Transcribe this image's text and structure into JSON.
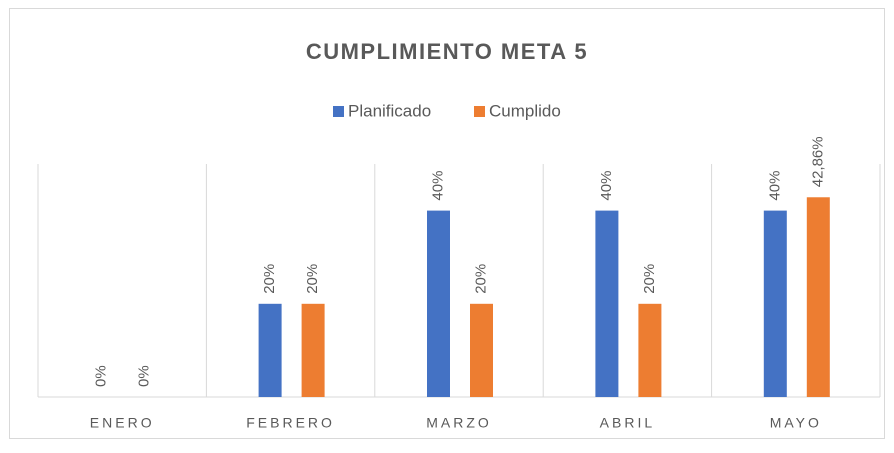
{
  "chart_data": {
    "type": "bar",
    "title": "CUMPLIMIENTO META 5",
    "categories": [
      "ENERO",
      "FEBRERO",
      "MARZO",
      "ABRIL",
      "MAYO"
    ],
    "series": [
      {
        "name": "Planificado",
        "color": "#4472c4",
        "values": [
          0,
          20,
          40,
          40,
          40
        ],
        "value_labels": [
          "0%",
          "20%",
          "40%",
          "40%",
          "40%"
        ]
      },
      {
        "name": "Cumplido",
        "color": "#ed7d31",
        "values": [
          0,
          20,
          20,
          20,
          42.86
        ],
        "value_labels": [
          "0%",
          "20%",
          "20%",
          "20%",
          "42,86%"
        ]
      }
    ],
    "ylim": [
      0,
      50
    ],
    "legend": "top"
  }
}
